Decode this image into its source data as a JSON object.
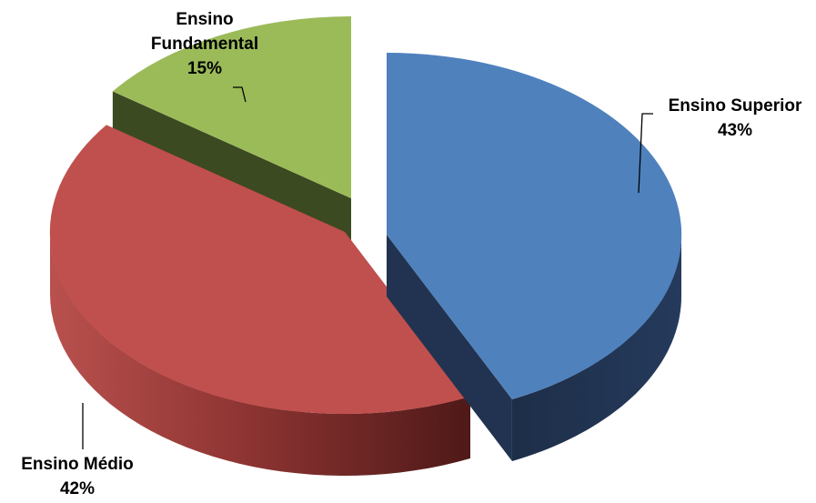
{
  "chart_data": {
    "type": "pie",
    "title": "",
    "style": "3d-exploded",
    "slices": [
      {
        "label": "Ensino Superior",
        "value": 43,
        "value_label": "43%",
        "color": "#4f81bd",
        "side_color": "#213350"
      },
      {
        "label": "Ensino Médio",
        "value": 42,
        "value_label": "42%",
        "color": "#c0504d",
        "side_color": "#7a2a28"
      },
      {
        "label": "Ensino Fundamental",
        "value": 15,
        "value_label": "15%",
        "color": "#9bbb59",
        "side_color": "#3c4a21"
      }
    ]
  }
}
